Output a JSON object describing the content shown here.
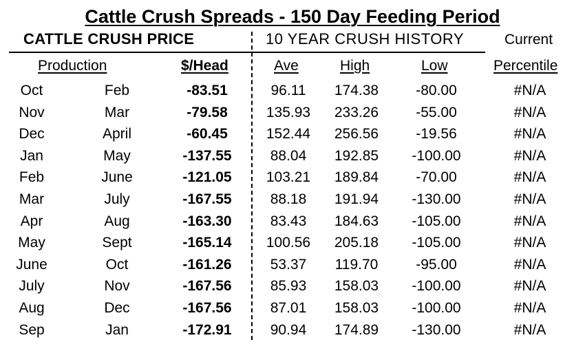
{
  "title": "Cattle Crush Spreads - 150 Day Feeding Period",
  "header": {
    "crush_price": "CATTLE CRUSH PRICE",
    "history": "10 YEAR CRUSH HISTORY",
    "current": "Current"
  },
  "columns": {
    "production": "Production",
    "head": "$/Head",
    "ave": "Ave",
    "high": "High",
    "low": "Low",
    "percentile": "Percentile"
  },
  "rows": [
    {
      "placed": "Oct",
      "marketed": "Feb",
      "head": "-83.51",
      "ave": "96.11",
      "high": "174.38",
      "low": "-80.00",
      "percentile": "#N/A"
    },
    {
      "placed": "Nov",
      "marketed": "Mar",
      "head": "-79.58",
      "ave": "135.93",
      "high": "233.26",
      "low": "-55.00",
      "percentile": "#N/A"
    },
    {
      "placed": "Dec",
      "marketed": "April",
      "head": "-60.45",
      "ave": "152.44",
      "high": "256.56",
      "low": "-19.56",
      "percentile": "#N/A"
    },
    {
      "placed": "Jan",
      "marketed": "May",
      "head": "-137.55",
      "ave": "88.04",
      "high": "192.85",
      "low": "-100.00",
      "percentile": "#N/A"
    },
    {
      "placed": "Feb",
      "marketed": "June",
      "head": "-121.05",
      "ave": "103.21",
      "high": "189.84",
      "low": "-70.00",
      "percentile": "#N/A"
    },
    {
      "placed": "Mar",
      "marketed": "July",
      "head": "-167.55",
      "ave": "88.18",
      "high": "191.94",
      "low": "-130.00",
      "percentile": "#N/A"
    },
    {
      "placed": "Apr",
      "marketed": "Aug",
      "head": "-163.30",
      "ave": "83.43",
      "high": "184.63",
      "low": "-105.00",
      "percentile": "#N/A"
    },
    {
      "placed": "May",
      "marketed": "Sept",
      "head": "-165.14",
      "ave": "100.56",
      "high": "205.18",
      "low": "-105.00",
      "percentile": "#N/A"
    },
    {
      "placed": "June",
      "marketed": "Oct",
      "head": "-161.26",
      "ave": "53.37",
      "high": "119.70",
      "low": "-95.00",
      "percentile": "#N/A"
    },
    {
      "placed": "July",
      "marketed": "Nov",
      "head": "-167.56",
      "ave": "85.93",
      "high": "158.03",
      "low": "-100.00",
      "percentile": "#N/A"
    },
    {
      "placed": "Aug",
      "marketed": "Dec",
      "head": "-167.56",
      "ave": "87.01",
      "high": "158.03",
      "low": "-100.00",
      "percentile": "#N/A"
    },
    {
      "placed": "Sep",
      "marketed": "Jan",
      "head": "-172.91",
      "ave": "90.94",
      "high": "174.89",
      "low": "-130.00",
      "percentile": "#N/A"
    }
  ]
}
